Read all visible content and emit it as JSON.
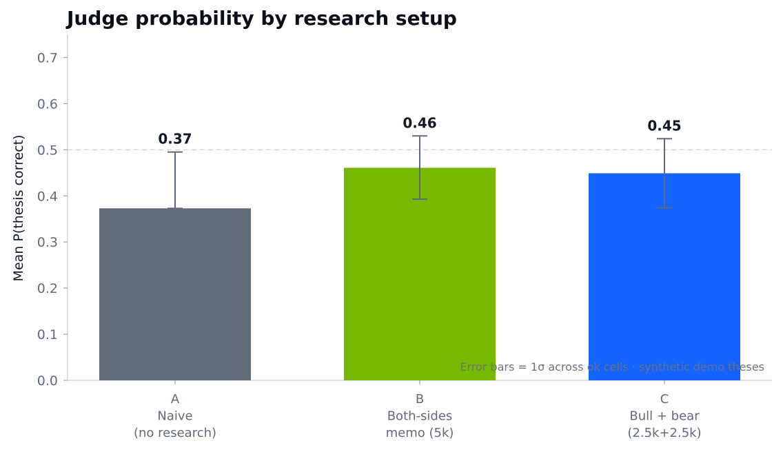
{
  "chart_data": {
    "type": "bar",
    "title": "Judge probability by research setup",
    "xlabel": "",
    "ylabel": "Mean P(thesis correct)",
    "ylim": [
      0,
      0.75
    ],
    "yticks": [
      "0.0",
      "0.1",
      "0.2",
      "0.3",
      "0.4",
      "0.5",
      "0.6",
      "0.7"
    ],
    "categories": [
      {
        "id": "A",
        "lines": [
          "Naive",
          "(no research)"
        ]
      },
      {
        "id": "B",
        "lines": [
          "Both-sides",
          "memo (5k)"
        ]
      },
      {
        "id": "C",
        "lines": [
          "Bull + bear",
          "(2.5k+2.5k)"
        ]
      }
    ],
    "values": [
      0.373,
      0.461,
      0.449
    ],
    "error_bars": [
      [
        0.373,
        0.495
      ],
      [
        0.393,
        0.53
      ],
      [
        0.374,
        0.524
      ]
    ],
    "data_labels": [
      "0.37",
      "0.46",
      "0.45"
    ],
    "bar_colors": [
      "#5f6b7a",
      "#76b900",
      "#1463ff"
    ],
    "reference_line": 0.5,
    "grid": false,
    "annotation": "Error bars = 1σ across ok cells · synthetic demo theses"
  }
}
